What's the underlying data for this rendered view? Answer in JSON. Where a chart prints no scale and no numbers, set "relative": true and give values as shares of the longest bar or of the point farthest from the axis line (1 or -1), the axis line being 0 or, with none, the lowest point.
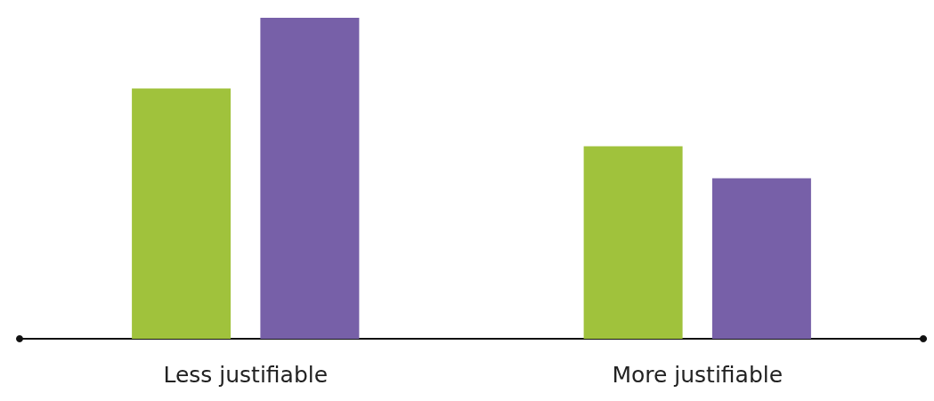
{
  "chart_data": {
    "type": "bar",
    "relative": true,
    "categories": [
      "Less justifiable",
      "More justifiable"
    ],
    "series": [
      {
        "color": "#a0c23c",
        "values": [
          0.78,
          0.6
        ]
      },
      {
        "color": "#7760a8",
        "values": [
          1,
          0.5
        ]
      }
    ]
  }
}
